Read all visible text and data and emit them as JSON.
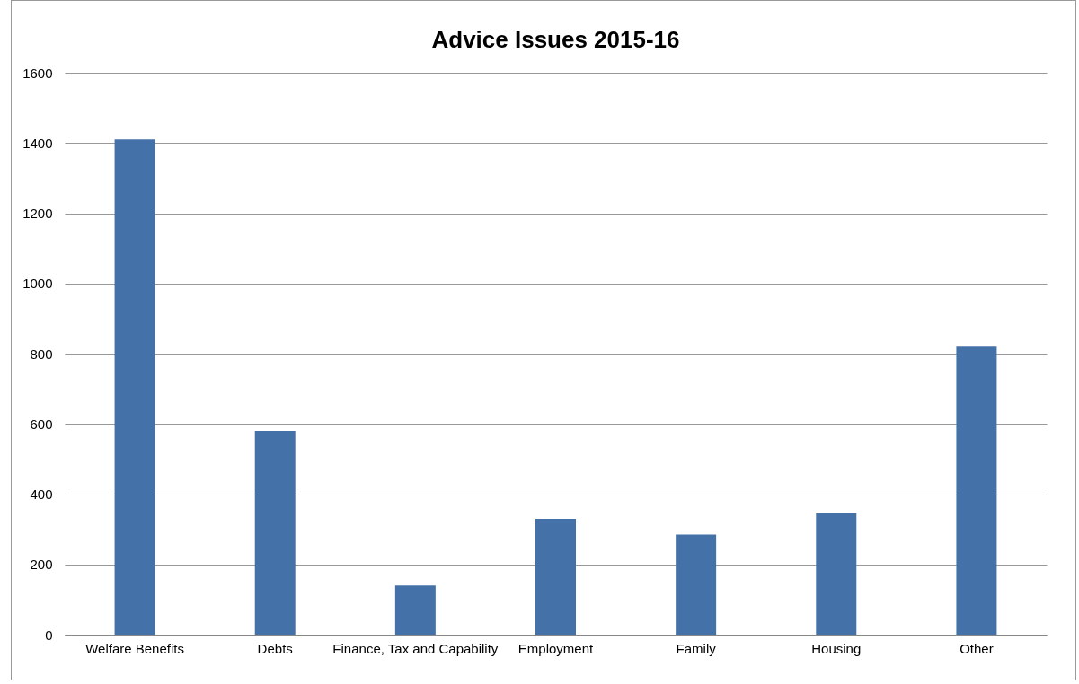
{
  "chart_data": {
    "type": "bar",
    "title": "Advice Issues  2015-16",
    "categories": [
      "Welfare Benefits",
      "Debts",
      "Finance, Tax and Capability",
      "Employment",
      "Family",
      "Housing",
      "Other"
    ],
    "values": [
      1410,
      580,
      140,
      330,
      285,
      345,
      820
    ],
    "color": "#4472a8",
    "ylim": [
      0,
      1600
    ],
    "yticks": [
      0,
      200,
      400,
      600,
      800,
      1000,
      1200,
      1400,
      1600
    ],
    "grid": "y"
  }
}
